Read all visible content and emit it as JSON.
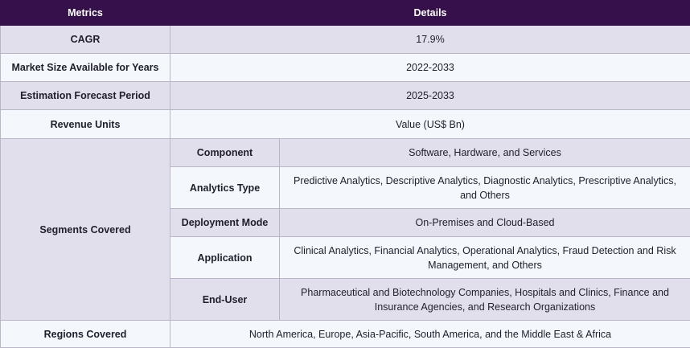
{
  "table": {
    "headers": {
      "metrics": "Metrics",
      "details": "Details"
    },
    "rows": {
      "cagr": {
        "label": "CAGR",
        "value": "17.9%"
      },
      "market_size": {
        "label": "Market Size Available for Years",
        "value": "2022-2033"
      },
      "forecast": {
        "label": "Estimation Forecast Period",
        "value": "2025-2033"
      },
      "revenue_units": {
        "label": "Revenue Units",
        "value": "Value (US$ Bn)"
      },
      "segments": {
        "label": "Segments Covered",
        "items": [
          {
            "label": "Component",
            "value": "Software, Hardware, and Services"
          },
          {
            "label": "Analytics Type",
            "value": "Predictive Analytics, Descriptive Analytics, Diagnostic Analytics, Prescriptive Analytics, and Others"
          },
          {
            "label": "Deployment Mode",
            "value": "On-Premises and Cloud-Based"
          },
          {
            "label": "Application",
            "value": "Clinical Analytics, Financial Analytics, Operational Analytics, Fraud Detection and Risk Management, and Others"
          },
          {
            "label": "End-User",
            "value": "Pharmaceutical and Biotechnology Companies, Hospitals and Clinics, Finance and Insurance Agencies, and Research Organizations"
          }
        ]
      },
      "regions": {
        "label": "Regions Covered",
        "value": "North America, Europe, Asia-Pacific, South America, and the Middle East & Africa"
      }
    }
  }
}
